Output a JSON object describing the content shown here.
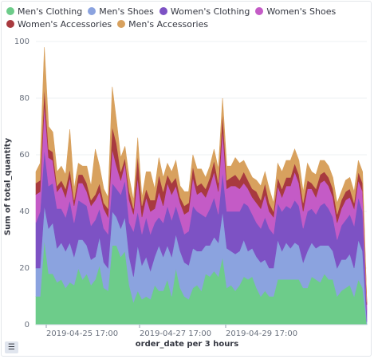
{
  "chart_data": {
    "type": "area",
    "stacked": true,
    "legend_position": "top",
    "xlabel": "order_date per 3 hours",
    "ylabel": "Sum of total_quantity",
    "ylim": [
      0,
      100
    ],
    "yticks": [
      0,
      20,
      40,
      60,
      80,
      100
    ],
    "xticks": [
      "2019-04-25 17:00",
      "2019-04-27 17:00",
      "2019-04-29 17:00"
    ],
    "legend": [
      {
        "name": "Men's Clothing",
        "color": "#6dcc8a"
      },
      {
        "name": "Men's Shoes",
        "color": "#8ba3df"
      },
      {
        "name": "Women's Clothing",
        "color": "#7d52c4"
      },
      {
        "name": "Women's Shoes",
        "color": "#c45bc6"
      },
      {
        "name": "Women's Accessories",
        "color": "#a83a3f"
      },
      {
        "name": "Men's Accessories",
        "color": "#d8a15e"
      }
    ],
    "series": [
      {
        "name": "Men's Clothing",
        "values": [
          10,
          10,
          30,
          18,
          18,
          15,
          16,
          13,
          15,
          14,
          20,
          16,
          18,
          14,
          16,
          21,
          13,
          12,
          28,
          28,
          24,
          26,
          14,
          8,
          12,
          9,
          10,
          9,
          14,
          12,
          12,
          16,
          10,
          20,
          13,
          10,
          9,
          13,
          14,
          12,
          18,
          17,
          19,
          17,
          24,
          13,
          14,
          12,
          14,
          17,
          16,
          17,
          13,
          10,
          12,
          10,
          10,
          16,
          16,
          16,
          16,
          16,
          16,
          13,
          13,
          17,
          16,
          15,
          18,
          16,
          16,
          10,
          12,
          13,
          14,
          10,
          16,
          13,
          0
        ]
      },
      {
        "name": "Men's Shoes",
        "values": [
          10,
          10,
          12,
          16,
          18,
          12,
          13,
          13,
          14,
          10,
          10,
          14,
          10,
          9,
          8,
          10,
          9,
          8,
          12,
          10,
          10,
          12,
          10,
          9,
          16,
          12,
          14,
          10,
          10,
          16,
          12,
          12,
          14,
          12,
          13,
          12,
          12,
          14,
          12,
          14,
          10,
          11,
          12,
          12,
          16,
          14,
          12,
          13,
          12,
          13,
          10,
          10,
          11,
          12,
          11,
          10,
          10,
          14,
          10,
          13,
          11,
          13,
          12,
          9,
          13,
          12,
          11,
          13,
          10,
          12,
          10,
          10,
          11,
          10,
          11,
          10,
          14,
          13,
          1
        ]
      },
      {
        "name": "Women's Clothing",
        "values": [
          16,
          20,
          20,
          15,
          14,
          14,
          12,
          12,
          15,
          12,
          14,
          13,
          14,
          12,
          13,
          10,
          12,
          12,
          10,
          10,
          12,
          13,
          12,
          16,
          12,
          11,
          14,
          13,
          12,
          10,
          12,
          14,
          13,
          10,
          11,
          10,
          12,
          15,
          14,
          13,
          10,
          13,
          14,
          10,
          14,
          13,
          14,
          15,
          14,
          13,
          16,
          12,
          12,
          12,
          15,
          14,
          12,
          13,
          14,
          13,
          14,
          15,
          14,
          12,
          14,
          12,
          12,
          14,
          15,
          13,
          12,
          10,
          12,
          14,
          14,
          15,
          15,
          14,
          4
        ]
      },
      {
        "name": "Women's Shoes",
        "values": [
          10,
          7,
          16,
          10,
          8,
          6,
          8,
          7,
          8,
          6,
          6,
          7,
          5,
          7,
          7,
          6,
          7,
          6,
          12,
          8,
          5,
          6,
          8,
          6,
          12,
          6,
          7,
          8,
          5,
          9,
          6,
          8,
          9,
          7,
          6,
          7,
          7,
          10,
          6,
          8,
          7,
          8,
          9,
          8,
          15,
          8,
          9,
          9,
          8,
          7,
          6,
          6,
          7,
          7,
          8,
          6,
          6,
          6,
          5,
          7,
          8,
          10,
          8,
          6,
          8,
          7,
          6,
          8,
          8,
          8,
          7,
          6,
          6,
          7,
          6,
          6,
          6,
          7,
          2
        ]
      },
      {
        "name": "Women's Accessories",
        "values": [
          4,
          4,
          6,
          3,
          3,
          2,
          2,
          3,
          3,
          2,
          3,
          3,
          3,
          2,
          2,
          3,
          2,
          3,
          8,
          8,
          3,
          2,
          3,
          2,
          8,
          4,
          3,
          4,
          3,
          6,
          5,
          3,
          4,
          3,
          2,
          3,
          3,
          4,
          3,
          3,
          3,
          3,
          4,
          3,
          6,
          3,
          3,
          4,
          3,
          4,
          3,
          3,
          4,
          3,
          4,
          3,
          2,
          3,
          3,
          3,
          3,
          3,
          3,
          3,
          3,
          2,
          3,
          3,
          3,
          3,
          3,
          3,
          3,
          3,
          3,
          2,
          3,
          3,
          1
        ]
      },
      {
        "name": "Men's Accessories",
        "values": [
          4,
          6,
          14,
          8,
          7,
          5,
          5,
          5,
          14,
          4,
          4,
          3,
          6,
          5,
          16,
          6,
          5,
          4,
          14,
          8,
          5,
          4,
          5,
          3,
          6,
          3,
          6,
          10,
          4,
          6,
          5,
          4,
          4,
          6,
          4,
          5,
          4,
          4,
          6,
          5,
          4,
          4,
          4,
          5,
          5,
          5,
          4,
          6,
          6,
          4,
          4,
          4,
          4,
          5,
          4,
          5,
          3,
          5,
          6,
          6,
          6,
          5,
          5,
          4,
          6,
          4,
          5,
          5,
          4,
          4,
          4,
          4,
          3,
          4,
          4,
          4,
          4,
          4,
          0
        ]
      }
    ]
  }
}
